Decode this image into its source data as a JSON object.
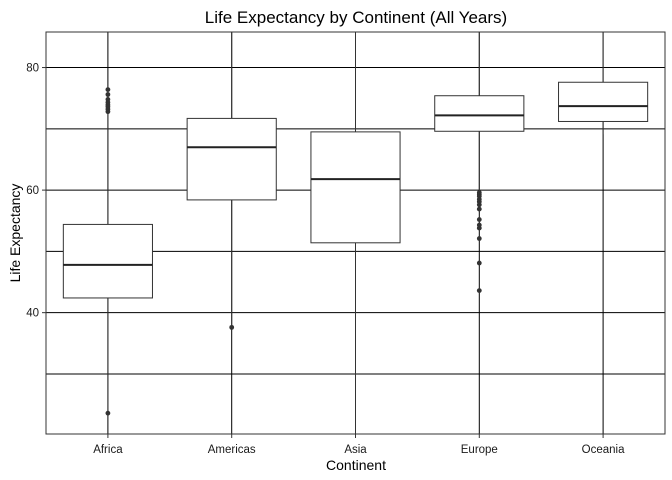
{
  "chart_data": {
    "type": "box",
    "title": "Life Expectancy by Continent (All Years)",
    "xlabel": "Continent",
    "ylabel": "Life Expectancy",
    "ylim": [
      20.2,
      85.8
    ],
    "yticks": [
      40,
      60,
      80
    ],
    "y_minor_gridlines": [
      30,
      50,
      70
    ],
    "grid": true,
    "categories": [
      "Africa",
      "Americas",
      "Asia",
      "Europe",
      "Oceania"
    ],
    "boxes": [
      {
        "category": "Africa",
        "min": 23.6,
        "q1": 42.4,
        "median": 47.8,
        "q3": 54.4,
        "max": 72.6,
        "outliers": [
          23.6,
          72.8,
          73.2,
          73.6,
          73.9,
          74.3,
          74.8,
          75.6,
          76.4
        ]
      },
      {
        "category": "Americas",
        "min": 37.6,
        "q1": 58.4,
        "median": 67.0,
        "q3": 71.7,
        "max": 85.8,
        "outliers": [
          37.6
        ]
      },
      {
        "category": "Asia",
        "min": 20.2,
        "q1": 51.4,
        "median": 61.8,
        "q3": 69.5,
        "max": 85.8,
        "outliers": []
      },
      {
        "category": "Europe",
        "min": 59.9,
        "q1": 69.6,
        "median": 72.2,
        "q3": 75.4,
        "max": 85.8,
        "outliers": [
          43.6,
          48.1,
          52.1,
          53.8,
          54.3,
          55.2,
          56.9,
          57.6,
          58.1,
          58.5,
          59.0,
          59.3,
          59.6
        ]
      },
      {
        "category": "Oceania",
        "min": 69.1,
        "q1": 71.2,
        "median": 73.7,
        "q3": 77.6,
        "max": 85.8,
        "outliers": []
      }
    ]
  }
}
